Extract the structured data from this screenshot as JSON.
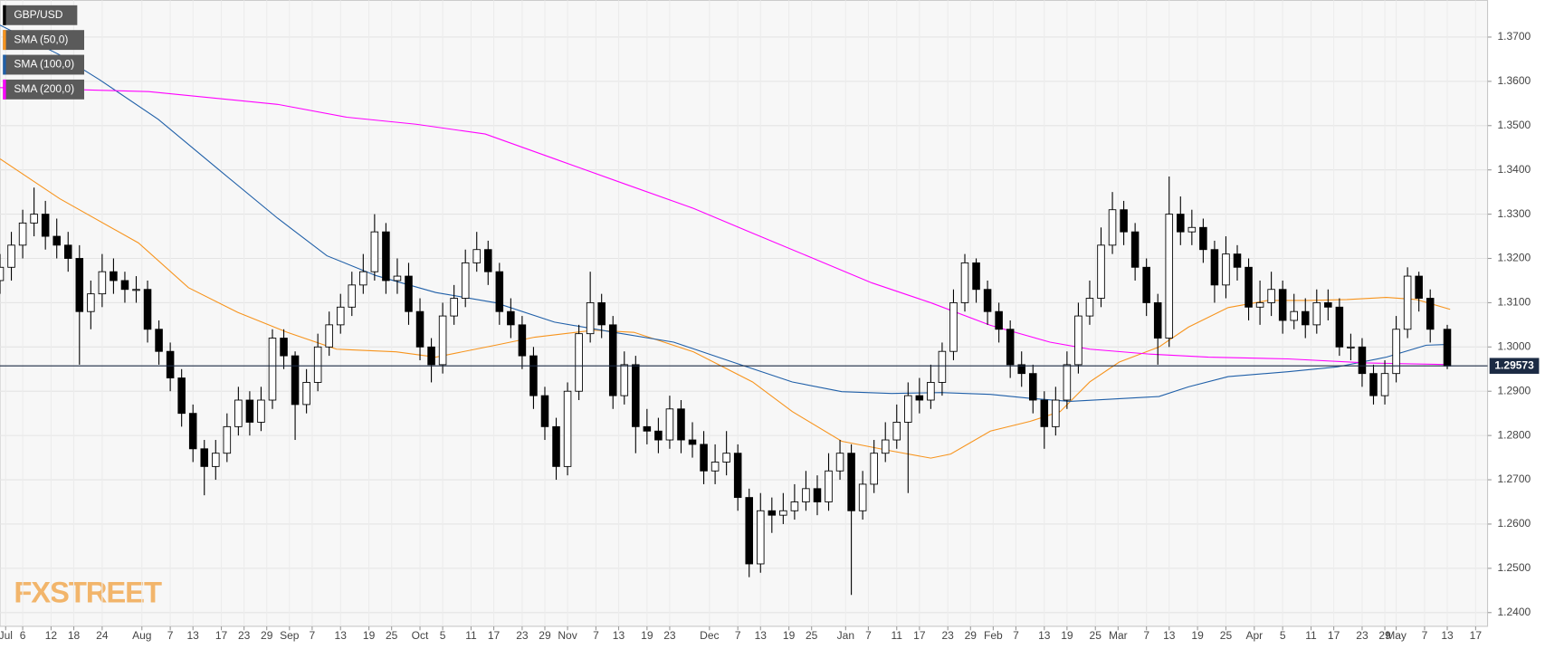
{
  "chart_data": {
    "type": "candlestick",
    "name": "GBP/USD",
    "color": "#000000",
    "x": [
      0,
      2,
      4,
      6,
      8,
      10,
      12,
      14,
      16,
      18,
      20,
      22,
      24,
      26,
      28,
      30,
      32,
      34,
      36,
      38,
      40,
      42,
      44,
      46,
      48,
      50,
      52,
      54,
      56,
      58,
      60,
      62,
      64,
      66,
      68,
      70,
      72,
      74,
      76,
      78,
      80,
      82,
      84,
      86,
      88,
      90,
      92,
      94,
      96,
      98,
      100,
      102,
      104,
      106,
      108,
      110,
      112,
      114,
      116,
      118,
      120,
      122,
      124,
      126,
      128,
      130,
      132,
      134,
      136,
      138,
      140,
      142,
      144,
      146,
      148,
      150,
      152,
      154,
      156,
      158,
      160,
      162,
      164,
      166,
      168,
      170,
      172,
      174,
      176,
      178,
      180,
      182,
      184,
      186,
      188,
      190,
      192,
      194,
      196,
      198,
      200,
      202,
      204,
      206,
      208,
      210,
      212,
      214,
      216,
      218,
      220,
      222,
      224,
      226,
      228,
      230,
      232,
      234,
      236,
      238,
      240,
      242,
      244,
      246,
      248,
      250,
      252,
      255
    ],
    "open": [
      1.315,
      1.318,
      1.323,
      1.328,
      1.33,
      1.325,
      1.323,
      1.32,
      1.308,
      1.312,
      1.317,
      1.315,
      1.313,
      1.313,
      1.304,
      1.299,
      1.293,
      1.285,
      1.277,
      1.273,
      1.276,
      1.282,
      1.288,
      1.283,
      1.288,
      1.302,
      1.298,
      1.287,
      1.292,
      1.3,
      1.305,
      1.309,
      1.314,
      1.317,
      1.326,
      1.315,
      1.316,
      1.308,
      1.3,
      1.296,
      1.307,
      1.311,
      1.319,
      1.322,
      1.317,
      1.308,
      1.305,
      1.298,
      1.289,
      1.282,
      1.273,
      1.29,
      1.303,
      1.31,
      1.305,
      1.289,
      1.296,
      1.282,
      1.281,
      1.279,
      1.286,
      1.279,
      1.278,
      1.272,
      1.274,
      1.276,
      1.266,
      1.251,
      1.263,
      1.262,
      1.263,
      1.265,
      1.268,
      1.265,
      1.272,
      1.276,
      1.263,
      1.269,
      1.276,
      1.279,
      1.283,
      1.289,
      1.288,
      1.292,
      1.299,
      1.31,
      1.319,
      1.313,
      1.308,
      1.304,
      1.296,
      1.294,
      1.288,
      1.282,
      1.288,
      1.296,
      1.307,
      1.311,
      1.323,
      1.331,
      1.326,
      1.318,
      1.31,
      1.302,
      1.33,
      1.326,
      1.327,
      1.322,
      1.314,
      1.321,
      1.318,
      1.309,
      1.31,
      1.313,
      1.306,
      1.308,
      1.305,
      1.31,
      1.309,
      1.3,
      1.3,
      1.294,
      1.289,
      1.294,
      1.304,
      1.316,
      1.311,
      1.304
    ],
    "high": [
      1.321,
      1.326,
      1.331,
      1.336,
      1.333,
      1.329,
      1.326,
      1.323,
      1.315,
      1.321,
      1.32,
      1.317,
      1.316,
      1.315,
      1.306,
      1.301,
      1.295,
      1.287,
      1.279,
      1.279,
      1.285,
      1.291,
      1.29,
      1.291,
      1.304,
      1.304,
      1.299,
      1.295,
      1.303,
      1.308,
      1.312,
      1.317,
      1.321,
      1.33,
      1.328,
      1.32,
      1.319,
      1.311,
      1.302,
      1.31,
      1.314,
      1.322,
      1.326,
      1.324,
      1.319,
      1.311,
      1.307,
      1.3,
      1.291,
      1.284,
      1.292,
      1.305,
      1.317,
      1.312,
      1.307,
      1.299,
      1.298,
      1.286,
      1.284,
      1.289,
      1.288,
      1.283,
      1.281,
      1.278,
      1.281,
      1.278,
      1.268,
      1.267,
      1.266,
      1.267,
      1.269,
      1.272,
      1.271,
      1.276,
      1.279,
      1.278,
      1.272,
      1.279,
      1.283,
      1.287,
      1.292,
      1.293,
      1.296,
      1.301,
      1.313,
      1.321,
      1.32,
      1.315,
      1.31,
      1.306,
      1.299,
      1.296,
      1.29,
      1.291,
      1.299,
      1.31,
      1.315,
      1.327,
      1.335,
      1.333,
      1.328,
      1.32,
      1.312,
      1.3385,
      1.334,
      1.331,
      1.329,
      1.324,
      1.325,
      1.323,
      1.32,
      1.315,
      1.317,
      1.315,
      1.312,
      1.311,
      1.313,
      1.313,
      1.311,
      1.303,
      1.302,
      1.296,
      1.297,
      1.307,
      1.318,
      1.317,
      1.313,
      1.305
    ],
    "low": [
      1.312,
      1.315,
      1.32,
      1.325,
      1.322,
      1.32,
      1.317,
      1.296,
      1.304,
      1.309,
      1.312,
      1.31,
      1.31,
      1.301,
      1.296,
      1.29,
      1.282,
      1.274,
      1.2665,
      1.27,
      1.274,
      1.28,
      1.28,
      1.281,
      1.286,
      1.295,
      1.279,
      1.285,
      1.29,
      1.298,
      1.303,
      1.307,
      1.312,
      1.315,
      1.312,
      1.312,
      1.305,
      1.297,
      1.292,
      1.294,
      1.305,
      1.309,
      1.317,
      1.314,
      1.305,
      1.302,
      1.295,
      1.286,
      1.279,
      1.27,
      1.271,
      1.288,
      1.301,
      1.302,
      1.286,
      1.287,
      1.276,
      1.278,
      1.276,
      1.277,
      1.276,
      1.275,
      1.269,
      1.269,
      1.271,
      1.263,
      1.248,
      1.249,
      1.258,
      1.26,
      1.261,
      1.263,
      1.262,
      1.263,
      1.27,
      1.244,
      1.261,
      1.267,
      1.274,
      1.277,
      1.267,
      1.285,
      1.286,
      1.289,
      1.297,
      1.308,
      1.31,
      1.305,
      1.301,
      1.293,
      1.291,
      1.285,
      1.277,
      1.28,
      1.286,
      1.294,
      1.305,
      1.309,
      1.321,
      1.323,
      1.315,
      1.307,
      1.296,
      1.3,
      1.323,
      1.323,
      1.319,
      1.31,
      1.311,
      1.315,
      1.306,
      1.305,
      1.307,
      1.303,
      1.304,
      1.302,
      1.303,
      1.306,
      1.298,
      1.297,
      1.291,
      1.287,
      1.287,
      1.292,
      1.302,
      1.308,
      1.301,
      1.295
    ],
    "close": [
      1.318,
      1.323,
      1.328,
      1.33,
      1.325,
      1.323,
      1.32,
      1.308,
      1.312,
      1.317,
      1.315,
      1.313,
      1.313,
      1.304,
      1.299,
      1.293,
      1.285,
      1.277,
      1.273,
      1.276,
      1.282,
      1.288,
      1.283,
      1.288,
      1.302,
      1.298,
      1.287,
      1.292,
      1.3,
      1.305,
      1.309,
      1.314,
      1.317,
      1.326,
      1.315,
      1.316,
      1.308,
      1.3,
      1.296,
      1.307,
      1.311,
      1.319,
      1.322,
      1.317,
      1.308,
      1.305,
      1.298,
      1.289,
      1.282,
      1.273,
      1.29,
      1.303,
      1.31,
      1.305,
      1.289,
      1.296,
      1.282,
      1.281,
      1.279,
      1.286,
      1.279,
      1.278,
      1.272,
      1.274,
      1.276,
      1.266,
      1.251,
      1.263,
      1.262,
      1.263,
      1.265,
      1.268,
      1.265,
      1.272,
      1.276,
      1.263,
      1.269,
      1.276,
      1.279,
      1.283,
      1.289,
      1.288,
      1.292,
      1.299,
      1.31,
      1.319,
      1.313,
      1.308,
      1.304,
      1.296,
      1.294,
      1.288,
      1.282,
      1.288,
      1.296,
      1.307,
      1.311,
      1.323,
      1.331,
      1.326,
      1.318,
      1.31,
      1.302,
      1.33,
      1.326,
      1.327,
      1.322,
      1.314,
      1.321,
      1.318,
      1.309,
      1.31,
      1.313,
      1.306,
      1.308,
      1.305,
      1.31,
      1.309,
      1.3,
      1.3,
      1.294,
      1.289,
      1.294,
      1.304,
      1.316,
      1.311,
      1.304,
      1.2957
    ],
    "series": [
      {
        "name": "SMA (50,0)",
        "color": "#f7941d",
        "x": [
          0,
          10.5,
          24.4,
          33.2,
          41.9,
          50.6,
          59.3,
          69.8,
          76.8,
          87.3,
          94.2,
          104.7,
          111.7,
          122.2,
          132.6,
          139.6,
          148.3,
          157.1,
          164,
          167.5,
          174.5,
          181.5,
          186.8,
          192,
          197.2,
          204.2,
          209.4,
          216.4,
          223.4,
          230.4,
          237.3,
          244.3,
          249.6,
          255.5
        ],
        "values": [
          1.3425,
          1.3335,
          1.3235,
          1.3134,
          1.3078,
          1.3033,
          1.2995,
          1.2989,
          1.2977,
          1.3004,
          1.3022,
          1.3038,
          1.3033,
          1.2989,
          1.2921,
          1.2854,
          1.2787,
          1.2765,
          1.2749,
          1.2758,
          1.281,
          1.2832,
          1.2854,
          1.2921,
          1.2966,
          1.3,
          1.3045,
          1.3089,
          1.3105,
          1.3105,
          1.3107,
          1.3112,
          1.3107,
          1.3085
        ]
      },
      {
        "name": "SMA (100,0)",
        "color": "#1f5fa8",
        "x": [
          0,
          10.5,
          17.5,
          27.9,
          38.4,
          48.9,
          57.6,
          66.3,
          76.8,
          87.3,
          97.7,
          108.2,
          118.7,
          129.1,
          139.6,
          148.3,
          157.1,
          165.8,
          174.5,
          181.5,
          188.5,
          195.5,
          204.2,
          209.4,
          216.4,
          226.9,
          235.6,
          244.3,
          251.3,
          255.5
        ],
        "values": [
          1.3727,
          1.366,
          1.3604,
          1.3514,
          1.3402,
          1.3291,
          1.3206,
          1.3161,
          1.3123,
          1.31,
          1.3056,
          1.3033,
          1.3011,
          1.2966,
          1.2921,
          1.2899,
          1.2895,
          1.2897,
          1.2893,
          1.2884,
          1.2877,
          1.2882,
          1.2888,
          1.291,
          1.2933,
          1.2944,
          1.2955,
          1.2977,
          1.3004,
          1.3006
        ]
      },
      {
        "name": "SMA (200,0)",
        "color": "#ff00ff",
        "x": [
          0,
          26.2,
          48.9,
          61.1,
          73.3,
          85.5,
          97.7,
          109.9,
          122.2,
          132.6,
          143.1,
          153.6,
          164,
          174.5,
          185,
          192,
          202.4,
          212.9,
          226.9,
          240.8,
          255.5
        ],
        "values": [
          1.3586,
          1.3577,
          1.3548,
          1.3519,
          1.3503,
          1.3481,
          1.3425,
          1.3369,
          1.3313,
          1.3257,
          1.3201,
          1.3145,
          1.31,
          1.3049,
          1.3011,
          1.2995,
          1.2984,
          1.2977,
          1.2973,
          1.2964,
          1.296
        ]
      }
    ],
    "last_price": 1.29573,
    "watermark": "FXSTREET",
    "grid": true,
    "xlim": [
      0,
      262.1
    ],
    "ylim": [
      1.2369,
      1.3783
    ],
    "yticks": [
      {
        "value": 1.24,
        "label": "1.2400"
      },
      {
        "value": 1.25,
        "label": "1.2500"
      },
      {
        "value": 1.26,
        "label": "1.2600"
      },
      {
        "value": 1.27,
        "label": "1.2700"
      },
      {
        "value": 1.28,
        "label": "1.2800"
      },
      {
        "value": 1.29,
        "label": "1.2900"
      },
      {
        "value": 1.3,
        "label": "1.3000"
      },
      {
        "value": 1.31,
        "label": "1.3100"
      },
      {
        "value": 1.32,
        "label": "1.3200"
      },
      {
        "value": 1.33,
        "label": "1.3300"
      },
      {
        "value": 1.34,
        "label": "1.3400"
      },
      {
        "value": 1.35,
        "label": "1.3500"
      },
      {
        "value": 1.36,
        "label": "1.3600"
      },
      {
        "value": 1.37,
        "label": "1.3700"
      }
    ],
    "xticks": [
      {
        "value": 1,
        "label": "Jul"
      },
      {
        "value": 4,
        "label": "6"
      },
      {
        "value": 9,
        "label": "12"
      },
      {
        "value": 13,
        "label": "18"
      },
      {
        "value": 18,
        "label": "24"
      },
      {
        "value": 25,
        "label": "Aug"
      },
      {
        "value": 30,
        "label": "7"
      },
      {
        "value": 34,
        "label": "13"
      },
      {
        "value": 39,
        "label": "17"
      },
      {
        "value": 43,
        "label": "23"
      },
      {
        "value": 47,
        "label": "29"
      },
      {
        "value": 51,
        "label": "Sep"
      },
      {
        "value": 55,
        "label": "7"
      },
      {
        "value": 60,
        "label": "13"
      },
      {
        "value": 65,
        "label": "19"
      },
      {
        "value": 69,
        "label": "25"
      },
      {
        "value": 74,
        "label": "Oct"
      },
      {
        "value": 78,
        "label": "5"
      },
      {
        "value": 83,
        "label": "11"
      },
      {
        "value": 87,
        "label": "17"
      },
      {
        "value": 92,
        "label": "23"
      },
      {
        "value": 96,
        "label": "29"
      },
      {
        "value": 100,
        "label": "Nov"
      },
      {
        "value": 105,
        "label": "7"
      },
      {
        "value": 109,
        "label": "13"
      },
      {
        "value": 114,
        "label": "19"
      },
      {
        "value": 118,
        "label": "23"
      },
      {
        "value": 125,
        "label": "Dec"
      },
      {
        "value": 130,
        "label": "7"
      },
      {
        "value": 134,
        "label": "13"
      },
      {
        "value": 139,
        "label": "19"
      },
      {
        "value": 143,
        "label": "25"
      },
      {
        "value": 149,
        "label": "Jan"
      },
      {
        "value": 153,
        "label": "7"
      },
      {
        "value": 158,
        "label": "11"
      },
      {
        "value": 162,
        "label": "17"
      },
      {
        "value": 167,
        "label": "23"
      },
      {
        "value": 171,
        "label": "29"
      },
      {
        "value": 175,
        "label": "Feb"
      },
      {
        "value": 179,
        "label": "7"
      },
      {
        "value": 184,
        "label": "13"
      },
      {
        "value": 188,
        "label": "19"
      },
      {
        "value": 193,
        "label": "25"
      },
      {
        "value": 197,
        "label": "Mar"
      },
      {
        "value": 202,
        "label": "7"
      },
      {
        "value": 206,
        "label": "13"
      },
      {
        "value": 211,
        "label": "19"
      },
      {
        "value": 216,
        "label": "25"
      },
      {
        "value": 221,
        "label": "Apr"
      },
      {
        "value": 226,
        "label": "5"
      },
      {
        "value": 231,
        "label": "11"
      },
      {
        "value": 235,
        "label": "17"
      },
      {
        "value": 240,
        "label": "23"
      },
      {
        "value": 244,
        "label": "29"
      },
      {
        "value": 246,
        "label": "May"
      },
      {
        "value": 251,
        "label": "7"
      },
      {
        "value": 255,
        "label": "13"
      },
      {
        "value": 260,
        "label": "17"
      }
    ]
  }
}
